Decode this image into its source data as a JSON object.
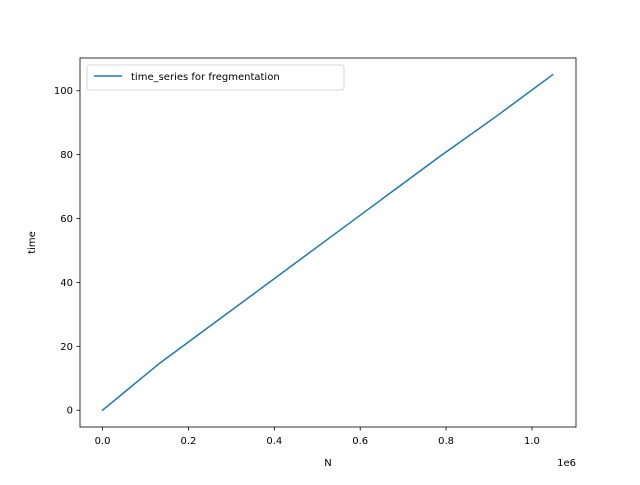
{
  "chart_data": {
    "type": "line",
    "xlabel": "N",
    "ylabel": "time",
    "x_offset_label": "1e6",
    "xlim": [
      -0.0525,
      1.1025
    ],
    "ylim": [
      -5.25,
      110.25
    ],
    "x_ticks": [
      0.0,
      0.2,
      0.4,
      0.6,
      0.8,
      1.0
    ],
    "x_tick_labels": [
      "0.0",
      "0.2",
      "0.4",
      "0.6",
      "0.8",
      "1.0"
    ],
    "y_ticks": [
      0,
      20,
      40,
      60,
      80,
      100
    ],
    "y_tick_labels": [
      "0",
      "20",
      "40",
      "60",
      "80",
      "100"
    ],
    "grid": false,
    "legend_position": "upper left",
    "series": [
      {
        "name": "time_series for fregmentation",
        "color": "#1f77b4",
        "x": [
          0.0,
          0.131,
          0.262,
          0.393,
          0.524,
          0.655,
          0.786,
          0.917,
          1.048
        ],
        "y": [
          0.0,
          14.5,
          27.5,
          40.5,
          53.5,
          66.5,
          79.5,
          92.0,
          105.0
        ]
      }
    ]
  }
}
